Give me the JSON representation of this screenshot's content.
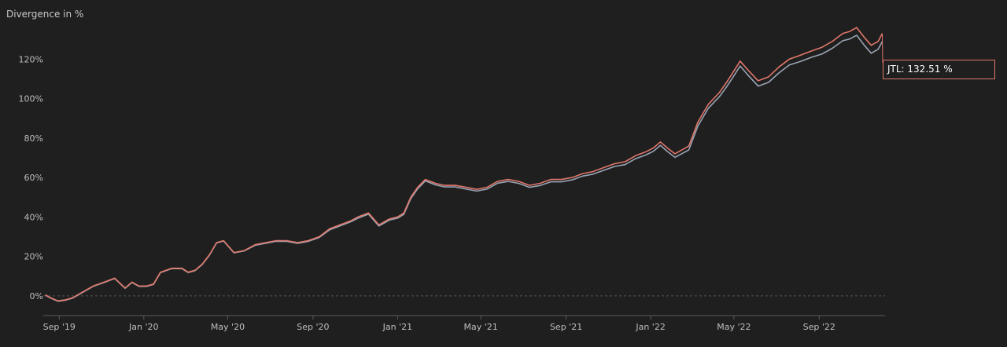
{
  "chart_title": "Divergence in %",
  "tooltip": {
    "label": "JTL: 132.51 %"
  },
  "colors": {
    "background": "#1f1f1f",
    "series_primary": "#e0776a",
    "series_secondary": "#9aa4b4",
    "axis": "#5a5a5a",
    "zero_line": "#555555",
    "text": "#bdbdbd"
  },
  "chart_data": {
    "type": "line",
    "title": "Divergence in %",
    "xlabel": "",
    "ylabel": "",
    "y_unit": "%",
    "ylim": [
      -10,
      142
    ],
    "xlim": [
      "2019-08-09",
      "2022-12-05"
    ],
    "grid": false,
    "zero_line": true,
    "x_ticks": [
      "Sep '19",
      "Jan '20",
      "May '20",
      "Sep '20",
      "Jan '21",
      "May '21",
      "Sep '21",
      "Jan '22",
      "May '22",
      "Sep '22"
    ],
    "x_tick_dates": [
      "2019-09-01",
      "2020-01-01",
      "2020-05-01",
      "2020-09-01",
      "2021-01-01",
      "2021-05-01",
      "2021-09-01",
      "2022-01-01",
      "2022-05-01",
      "2022-09-01"
    ],
    "y_ticks": [
      "0%",
      "20%",
      "40%",
      "60%",
      "80%",
      "100%",
      "120%"
    ],
    "y_tick_values": [
      0,
      20,
      40,
      60,
      80,
      100,
      120
    ],
    "series": [
      {
        "name": "JTL",
        "color": "#e0776a",
        "x": [
          "2019-08-12",
          "2019-08-20",
          "2019-08-30",
          "2019-09-10",
          "2019-09-20",
          "2019-10-05",
          "2019-10-20",
          "2019-11-05",
          "2019-11-20",
          "2019-12-05",
          "2019-12-15",
          "2019-12-25",
          "2020-01-05",
          "2020-01-15",
          "2020-01-25",
          "2020-02-10",
          "2020-02-25",
          "2020-03-05",
          "2020-03-15",
          "2020-03-25",
          "2020-04-05",
          "2020-04-15",
          "2020-04-25",
          "2020-05-10",
          "2020-05-25",
          "2020-06-10",
          "2020-06-25",
          "2020-07-10",
          "2020-07-25",
          "2020-08-10",
          "2020-08-25",
          "2020-09-10",
          "2020-09-25",
          "2020-10-10",
          "2020-10-25",
          "2020-11-05",
          "2020-11-20",
          "2020-12-05",
          "2020-12-20",
          "2021-01-01",
          "2021-01-10",
          "2021-01-20",
          "2021-01-30",
          "2021-02-10",
          "2021-02-25",
          "2021-03-10",
          "2021-03-25",
          "2021-04-10",
          "2021-04-25",
          "2021-05-10",
          "2021-05-25",
          "2021-06-10",
          "2021-06-25",
          "2021-07-10",
          "2021-07-25",
          "2021-08-10",
          "2021-08-25",
          "2021-09-10",
          "2021-09-25",
          "2021-10-10",
          "2021-10-25",
          "2021-11-10",
          "2021-11-25",
          "2021-12-10",
          "2021-12-25",
          "2022-01-05",
          "2022-01-15",
          "2022-01-25",
          "2022-02-05",
          "2022-02-15",
          "2022-02-25",
          "2022-03-10",
          "2022-03-25",
          "2022-04-10",
          "2022-04-20",
          "2022-05-01",
          "2022-05-10",
          "2022-05-20",
          "2022-06-05",
          "2022-06-20",
          "2022-07-05",
          "2022-07-20",
          "2022-08-05",
          "2022-08-20",
          "2022-09-05",
          "2022-09-20",
          "2022-10-05",
          "2022-10-15",
          "2022-10-25",
          "2022-11-05",
          "2022-11-15",
          "2022-11-25",
          "2022-12-01"
        ],
        "values": [
          0.5,
          -1,
          -2.5,
          -2,
          -1,
          2,
          5,
          7,
          9,
          4,
          7,
          5,
          5,
          6,
          12,
          14,
          14,
          12,
          13,
          16,
          21,
          27,
          28,
          22,
          23,
          26,
          27,
          28,
          28,
          27,
          28,
          30,
          34,
          36,
          38,
          40,
          42,
          36,
          39,
          40,
          42,
          50,
          55,
          59,
          57,
          56,
          56,
          55,
          54,
          55,
          58,
          59,
          58,
          56,
          57,
          59,
          59,
          60,
          62,
          63,
          65,
          67,
          68,
          71,
          73,
          75,
          78,
          75,
          72,
          74,
          76,
          88,
          97,
          103,
          108,
          114,
          119,
          115,
          109,
          111,
          116,
          120,
          122,
          124,
          126,
          129,
          133,
          134,
          136,
          131,
          127,
          129,
          133
        ]
      },
      {
        "name": "",
        "color": "#9aa4b4",
        "x": [
          "2019-08-12",
          "2019-08-20",
          "2019-08-30",
          "2019-09-10",
          "2019-09-20",
          "2019-10-05",
          "2019-10-20",
          "2019-11-05",
          "2019-11-20",
          "2019-12-05",
          "2019-12-15",
          "2019-12-25",
          "2020-01-05",
          "2020-01-15",
          "2020-01-25",
          "2020-02-10",
          "2020-02-25",
          "2020-03-05",
          "2020-03-15",
          "2020-03-25",
          "2020-04-05",
          "2020-04-15",
          "2020-04-25",
          "2020-05-10",
          "2020-05-25",
          "2020-06-10",
          "2020-06-25",
          "2020-07-10",
          "2020-07-25",
          "2020-08-10",
          "2020-08-25",
          "2020-09-10",
          "2020-09-25",
          "2020-10-10",
          "2020-10-25",
          "2020-11-05",
          "2020-11-20",
          "2020-12-05",
          "2020-12-20",
          "2021-01-01",
          "2021-01-10",
          "2021-01-20",
          "2021-01-30",
          "2021-02-10",
          "2021-02-25",
          "2021-03-10",
          "2021-03-25",
          "2021-04-10",
          "2021-04-25",
          "2021-05-10",
          "2021-05-25",
          "2021-06-10",
          "2021-06-25",
          "2021-07-10",
          "2021-07-25",
          "2021-08-10",
          "2021-08-25",
          "2021-09-10",
          "2021-09-25",
          "2021-10-10",
          "2021-10-25",
          "2021-11-10",
          "2021-11-25",
          "2021-12-10",
          "2021-12-25",
          "2022-01-05",
          "2022-01-15",
          "2022-01-25",
          "2022-02-05",
          "2022-02-15",
          "2022-02-25",
          "2022-03-10",
          "2022-03-25",
          "2022-04-10",
          "2022-04-20",
          "2022-05-01",
          "2022-05-10",
          "2022-05-20",
          "2022-06-05",
          "2022-06-20",
          "2022-07-05",
          "2022-07-20",
          "2022-08-05",
          "2022-08-20",
          "2022-09-05",
          "2022-09-20",
          "2022-10-05",
          "2022-10-15",
          "2022-10-25",
          "2022-11-05",
          "2022-11-15",
          "2022-11-25",
          "2022-12-01"
        ],
        "values": [
          0.3,
          -1.2,
          -2.7,
          -2.2,
          -1.2,
          1.8,
          4.8,
          6.8,
          8.8,
          3.8,
          6.8,
          4.8,
          4.8,
          5.8,
          11.8,
          13.8,
          13.8,
          11.8,
          12.8,
          15.8,
          20.8,
          26.8,
          27.8,
          21.8,
          22.8,
          25.7,
          26.7,
          27.7,
          27.6,
          26.6,
          27.6,
          29.6,
          33.5,
          35.5,
          37.5,
          39.4,
          41.4,
          35.4,
          38.4,
          39.4,
          41.3,
          49.3,
          54.3,
          58.3,
          56.2,
          55.2,
          55.2,
          54.1,
          53.1,
          54.1,
          57.1,
          58,
          57,
          55,
          55.9,
          57.8,
          57.8,
          58.8,
          60.7,
          61.7,
          63.6,
          65.6,
          66.5,
          69.5,
          71.4,
          73.3,
          76.3,
          73.2,
          70.2,
          72.1,
          74,
          86,
          95,
          100.9,
          105.7,
          111.6,
          116.5,
          112.4,
          106.3,
          108.2,
          113,
          117,
          118.8,
          120.8,
          122.6,
          125.5,
          129.3,
          130.2,
          132.1,
          127,
          123,
          125,
          129
        ]
      }
    ]
  }
}
